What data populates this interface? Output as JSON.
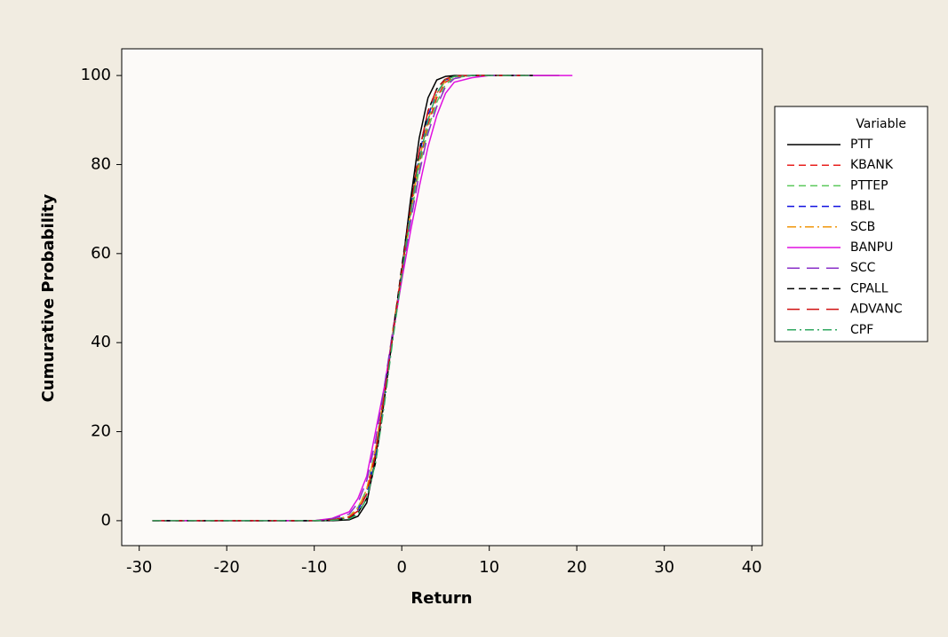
{
  "chart_data": {
    "type": "line",
    "x_label": "Return",
    "y_label": "Cumurative Probability",
    "legend_title": "Variable",
    "x": [
      -28.5,
      -25,
      -20,
      -15,
      -10,
      -8,
      -6,
      -5,
      -4,
      -3,
      -2,
      -1,
      0,
      1,
      2,
      3,
      4,
      5,
      6,
      8,
      10,
      15,
      18,
      19.5
    ],
    "xlim": [
      -32,
      41.2
    ],
    "xticks": [
      -30,
      -20,
      -10,
      0,
      10,
      20,
      30,
      40
    ],
    "ylim": [
      -5.6,
      106
    ],
    "yticks": [
      0,
      20,
      40,
      60,
      80,
      100
    ],
    "grid": false,
    "legend": "right",
    "series": [
      {
        "name": "PTT",
        "color": "#000000",
        "dash": "solid",
        "values": [
          null,
          0,
          0,
          0,
          0,
          0,
          0.2,
          1,
          4,
          14,
          28,
          42,
          56,
          72,
          86,
          95,
          99,
          99.8,
          100,
          100,
          100,
          100,
          100,
          null
        ]
      },
      {
        "name": "KBANK",
        "color": "#e8201e",
        "dash": "dashed",
        "values": [
          0,
          0,
          0,
          0,
          0,
          0.1,
          0.8,
          2.5,
          7,
          16,
          29,
          43,
          56,
          69,
          80,
          89,
          95,
          98.5,
          99.7,
          100,
          100,
          100,
          null,
          null
        ]
      },
      {
        "name": "PTTEP",
        "color": "#5ac85a",
        "dash": "dashed",
        "values": [
          0,
          0,
          0,
          0,
          0,
          0.2,
          1,
          3,
          7,
          16,
          29,
          43,
          55,
          68,
          79,
          88,
          94,
          98,
          99.5,
          100,
          100,
          100,
          null,
          null
        ]
      },
      {
        "name": "BBL",
        "color": "#1010e0",
        "dash": "dashed",
        "values": [
          0,
          0,
          0,
          0,
          0,
          0.1,
          0.8,
          2.5,
          6,
          15,
          28,
          42,
          56,
          70,
          82,
          91,
          96,
          99,
          99.8,
          100,
          100,
          100,
          null,
          null
        ]
      },
      {
        "name": "SCB",
        "color": "#f0960a",
        "dash": "dashdot",
        "values": [
          0,
          0,
          0,
          0,
          0,
          0.1,
          0.9,
          2.8,
          7,
          16,
          29,
          43,
          56,
          69,
          81,
          90,
          96,
          98.8,
          99.8,
          100,
          100,
          100,
          null,
          null
        ]
      },
      {
        "name": "BANPU",
        "color": "#e010e0",
        "dash": "solid",
        "values": [
          0,
          0,
          0,
          0,
          0,
          0.5,
          2,
          5,
          10,
          20,
          30,
          42,
          54,
          65,
          75,
          84,
          91,
          96,
          98.5,
          99.5,
          100,
          100,
          100,
          100
        ]
      },
      {
        "name": "SCC",
        "color": "#8a30c8",
        "dash": "longdash",
        "values": [
          0,
          0,
          0,
          0,
          0,
          0.4,
          1.5,
          4,
          9,
          18,
          30,
          43,
          55,
          67,
          78,
          87,
          93,
          97.5,
          99.3,
          100,
          100,
          100,
          null,
          null
        ]
      },
      {
        "name": "CPALL",
        "color": "#000000",
        "dash": "dashed",
        "values": [
          0,
          0,
          0,
          0,
          0,
          0.1,
          0.5,
          1.8,
          5,
          13,
          27,
          42,
          57,
          71,
          83,
          92,
          97,
          99.3,
          99.9,
          100,
          100,
          100,
          null,
          null
        ]
      },
      {
        "name": "ADVANC",
        "color": "#d01010",
        "dash": "longdash",
        "values": [
          0,
          0,
          0,
          0,
          0,
          0.2,
          0.8,
          2.2,
          6,
          15,
          28,
          42,
          56,
          70,
          83,
          92,
          97,
          99.2,
          99.9,
          100,
          100,
          100,
          null,
          null
        ]
      },
      {
        "name": "CPF",
        "color": "#30a860",
        "dash": "dashdot",
        "values": [
          0,
          0,
          0,
          0,
          0,
          0.1,
          0.4,
          1.5,
          5,
          13,
          26,
          41,
          55,
          69,
          81,
          90,
          96,
          99,
          99.8,
          100,
          100,
          100,
          null,
          null
        ]
      }
    ]
  }
}
